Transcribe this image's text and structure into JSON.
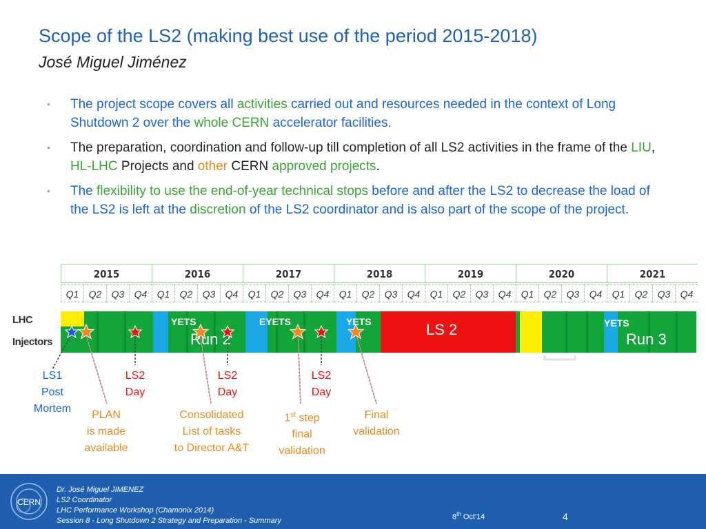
{
  "title": "Scope of the LS2 (making best use of the period 2015-2018)",
  "subtitle": "José Miguel Jiménez",
  "bullets": [
    [
      {
        "t": "The project scope covers all ",
        "c": "blue"
      },
      {
        "t": "activities",
        "c": "green"
      },
      {
        "t": " carried out and resources needed in the context of Long Shutdown 2 over the ",
        "c": "blue"
      },
      {
        "t": "whole CERN",
        "c": "green"
      },
      {
        "t": " accelerator facilities.",
        "c": "blue"
      }
    ],
    [
      {
        "t": "The preparation, coordination and follow-up till completion of all LS2 activities in the frame of the ",
        "c": "black"
      },
      {
        "t": "LIU",
        "c": "green"
      },
      {
        "t": ", ",
        "c": "black"
      },
      {
        "t": "HL-LHC",
        "c": "green"
      },
      {
        "t": " Projects and ",
        "c": "black"
      },
      {
        "t": "other",
        "c": "orange"
      },
      {
        "t": " CERN ",
        "c": "black"
      },
      {
        "t": "approved projects",
        "c": "green"
      },
      {
        "t": ".",
        "c": "black"
      }
    ],
    [
      {
        "t": "The ",
        "c": "blue"
      },
      {
        "t": "flexibility to use the end-of-year technical stops",
        "c": "green"
      },
      {
        "t": " before and after the LS2 to decrease the load of the LS2 is left at the ",
        "c": "blue"
      },
      {
        "t": "discretion",
        "c": "green"
      },
      {
        "t": " of the LS2 coordinator and is also part of the scope of the project.",
        "c": "blue"
      }
    ]
  ],
  "timeline": {
    "years": [
      "2015",
      "2016",
      "2017",
      "2018",
      "2019",
      "2020",
      "2021"
    ],
    "quarters": [
      "Q1",
      "Q2",
      "Q3",
      "Q4"
    ],
    "row_labels": {
      "lhc": "LHC",
      "injectors": "Injectors"
    },
    "bar_labels": {
      "yets1": "YETS",
      "eyets": "EYETS",
      "yets2": "YETS",
      "ls2": "LS 2",
      "run2": "Run 2",
      "yets3": "YETS",
      "run3": "Run 3"
    },
    "colors": {
      "run": "#13a53a",
      "ls": "#ee1111",
      "stop": "#1aa9e6",
      "yellow": "#ffee00",
      "star_blue": "#2255dd",
      "star_red": "#ee1111",
      "star_orange": "#f08a1c"
    }
  },
  "callouts": {
    "ls1_post_mortem": "LS1\nPost\nMortem",
    "plan": "PLAN\nis made\navailable",
    "ls2_day_1": "LS2\nDay",
    "consolidated": "Consolidated\nList of tasks\nto Director A&T",
    "ls2_day_2": "LS2\nDay",
    "first_step_prefix": "1",
    "first_step_sup": "st",
    "first_step_rest": " step\nfinal\nvalidation",
    "ls2_day_3": "LS2\nDay",
    "final_validation": "Final\nvalidation"
  },
  "footer": {
    "author": "Dr. José Miguel JIMENEZ",
    "role": "LS2 Coordinator",
    "workshop": "LHC Performance Workshop (Chamonix 2014)",
    "session": "Session 8 - Long Shutdown 2 Strategy and Preparation - Summary",
    "date_prefix": "8",
    "date_sup": "th",
    "date_rest": " Oct'14",
    "page": "4",
    "logo_text": "CERN"
  }
}
